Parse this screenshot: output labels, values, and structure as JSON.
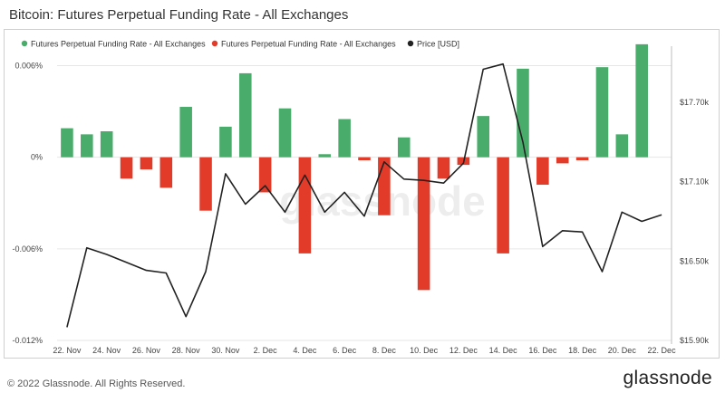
{
  "title": "Bitcoin: Futures Perpetual Funding Rate - All Exchanges",
  "watermark": "glassnode",
  "footer": {
    "copyright": "© 2022 Glassnode. All Rights Reserved.",
    "logo": "glassnode"
  },
  "colors": {
    "positive": "#4aac6b",
    "negative": "#e23b2a",
    "price": "#222222",
    "grid": "#e6e6e6"
  },
  "chart_data": {
    "type": "bar",
    "legend_position": "top",
    "grid": true,
    "legend": [
      {
        "label": "Futures Perpetual Funding Rate - All Exchanges",
        "color": "#4aac6b",
        "kind": "dot"
      },
      {
        "label": "Futures Perpetual Funding Rate - All Exchanges",
        "color": "#e23b2a",
        "kind": "dot"
      },
      {
        "label": "Price [USD]",
        "color": "#222222",
        "kind": "dot"
      }
    ],
    "x_ticks": [
      "22. Nov",
      "24. Nov",
      "26. Nov",
      "28. Nov",
      "30. Nov",
      "2. Dec",
      "4. Dec",
      "6. Dec",
      "8. Dec",
      "10. Dec",
      "12. Dec",
      "14. Dec",
      "16. Dec",
      "18. Dec",
      "20. Dec",
      "22. Dec"
    ],
    "dates": [
      "22 Nov",
      "23 Nov",
      "24 Nov",
      "25 Nov",
      "26 Nov",
      "27 Nov",
      "28 Nov",
      "29 Nov",
      "30 Nov",
      "1 Dec",
      "2 Dec",
      "3 Dec",
      "4 Dec",
      "5 Dec",
      "6 Dec",
      "7 Dec",
      "8 Dec",
      "9 Dec",
      "10 Dec",
      "11 Dec",
      "12 Dec",
      "13 Dec",
      "14 Dec",
      "15 Dec",
      "16 Dec",
      "17 Dec",
      "18 Dec",
      "19 Dec",
      "20 Dec",
      "21 Dec",
      "22 Dec"
    ],
    "funding_rate": [
      0.0019,
      0.0015,
      0.0017,
      -0.0014,
      -0.0008,
      -0.002,
      0.0033,
      -0.0035,
      0.002,
      0.0055,
      -0.0023,
      0.0032,
      -0.0063,
      0.0002,
      0.0025,
      -0.0002,
      -0.0038,
      0.0013,
      -0.0087,
      -0.0014,
      -0.0005,
      0.0027,
      -0.0063,
      0.0058,
      -0.0018,
      -0.0004,
      -0.0002,
      0.0059,
      0.0015,
      0.0074,
      null
    ],
    "price": [
      16000,
      16600,
      16550,
      16490,
      16430,
      16410,
      16080,
      16420,
      17160,
      16930,
      17070,
      16870,
      17150,
      16870,
      17020,
      16840,
      17250,
      17120,
      17110,
      17090,
      17240,
      17950,
      17990,
      17400,
      16610,
      16730,
      16720,
      16420,
      16870,
      16800,
      16850
    ],
    "y_left": {
      "min": -0.012,
      "max": 0.0068,
      "ticks": [
        0.006,
        0,
        -0.006,
        -0.012
      ],
      "tick_labels": [
        "0.006%",
        "0%",
        "-0.006%",
        "-0.012%"
      ]
    },
    "y_right": {
      "min": 15900,
      "max": 18070,
      "ticks": [
        17700,
        17100,
        16500,
        15900
      ],
      "tick_labels": [
        "$17.70k",
        "$17.10k",
        "$16.50k",
        "$15.90k"
      ]
    }
  }
}
